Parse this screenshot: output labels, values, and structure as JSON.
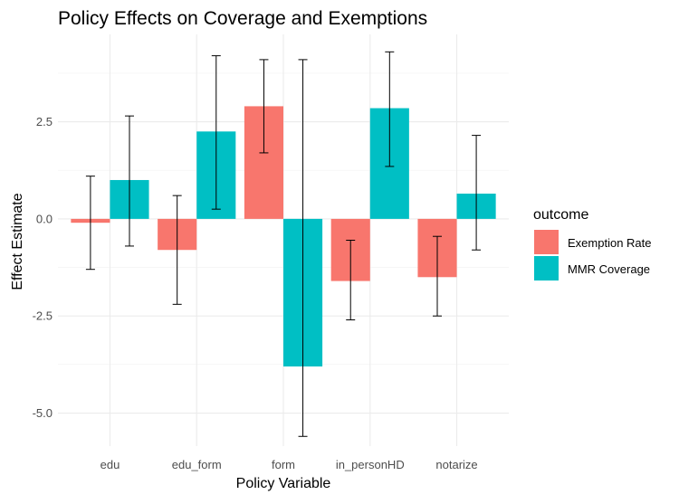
{
  "chart_data": {
    "type": "bar",
    "title": "Policy Effects on Coverage and Exemptions",
    "xlabel": "Policy Variable",
    "ylabel": "Effect Estimate",
    "categories": [
      "edu",
      "edu_form",
      "form",
      "in_personHD",
      "notarize"
    ],
    "series": [
      {
        "name": "Exemption Rate",
        "color": "#F8766D",
        "values": [
          -0.1,
          -0.8,
          2.9,
          -1.6,
          -1.5
        ],
        "error_low": [
          -1.3,
          -2.2,
          1.7,
          -2.6,
          -2.5
        ],
        "error_high": [
          1.1,
          0.6,
          4.1,
          -0.55,
          -0.45
        ]
      },
      {
        "name": "MMR Coverage",
        "color": "#00BFC4",
        "values": [
          1.0,
          2.25,
          -3.8,
          2.85,
          0.65
        ],
        "error_low": [
          -0.7,
          0.25,
          -5.6,
          1.35,
          -0.8
        ],
        "error_high": [
          2.65,
          4.2,
          4.1,
          4.3,
          2.15
        ]
      }
    ],
    "ylim": [
      -5.85,
      4.75
    ],
    "yticks": [
      -5.0,
      -2.5,
      0.0,
      2.5
    ],
    "ytick_labels": [
      "-5.0",
      "-2.5",
      "0.0",
      "2.5"
    ],
    "grid": true,
    "legend": {
      "title": "outcome",
      "placement": "right"
    }
  }
}
